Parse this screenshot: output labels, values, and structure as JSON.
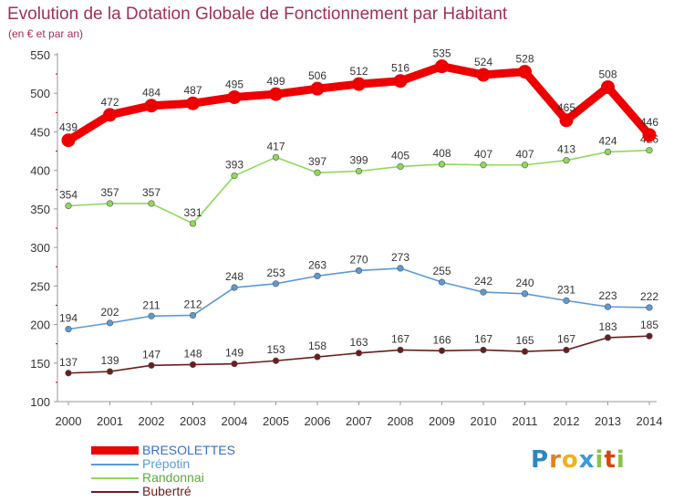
{
  "header": {
    "title": "Evolution de la Dotation Globale de Fonctionnement par Habitant",
    "subtitle": "(en € et par an)"
  },
  "brand": {
    "letters": [
      "P",
      "r",
      "o",
      "x",
      "i",
      "t",
      "i"
    ],
    "colors": [
      "#2e86c1",
      "#e08020",
      "#f0b020",
      "#3a9ad9",
      "#8bc34a",
      "#d84315",
      "#8bc34a"
    ]
  },
  "chart_data": {
    "type": "line",
    "title": "Evolution de la Dotation Globale de Fonctionnement par Habitant",
    "subtitle": "(en € et par an)",
    "xlabel": "",
    "ylabel": "",
    "ylim": [
      100,
      550
    ],
    "yticks": [
      100,
      150,
      200,
      250,
      300,
      350,
      400,
      450,
      500,
      550
    ],
    "grid": false,
    "legend": "bottom-left",
    "categories": [
      "2000",
      "2001",
      "2002",
      "2003",
      "2004",
      "2005",
      "2006",
      "2007",
      "2008",
      "2009",
      "2010",
      "2011",
      "2012",
      "2013",
      "2014"
    ],
    "series": [
      {
        "name": "Bubertré",
        "color": "#6b1c1c",
        "values": [
          137,
          139,
          147,
          148,
          149,
          153,
          158,
          163,
          167,
          166,
          167,
          165,
          167,
          183,
          185
        ]
      },
      {
        "name": "Prépotin",
        "color": "#5b9bd5",
        "values": [
          194,
          202,
          211,
          212,
          248,
          253,
          263,
          270,
          273,
          255,
          242,
          240,
          231,
          223,
          222
        ]
      },
      {
        "name": "Randonnai",
        "color": "#8fd95a",
        "values": [
          354,
          357,
          357,
          331,
          393,
          417,
          397,
          399,
          405,
          408,
          407,
          407,
          413,
          424,
          426
        ]
      },
      {
        "name": "BRESOLETTES",
        "color": "#ee0000",
        "values": [
          439,
          472,
          484,
          487,
          495,
          499,
          506,
          512,
          516,
          535,
          524,
          528,
          465,
          508,
          446
        ]
      }
    ]
  }
}
